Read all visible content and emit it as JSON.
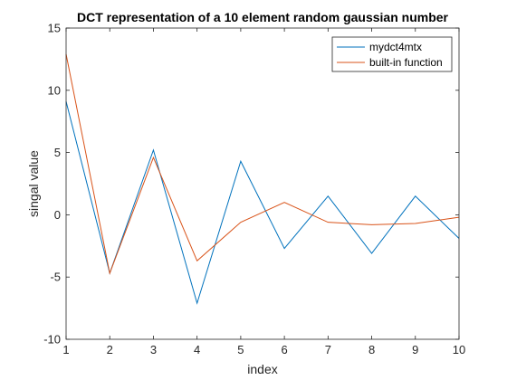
{
  "chart_data": {
    "type": "line",
    "title": "DCT representation of a 10 element random gaussian number",
    "xlabel": "index",
    "ylabel": "singal value",
    "xlim": [
      1,
      10
    ],
    "ylim": [
      -10,
      15
    ],
    "xticks": [
      1,
      2,
      3,
      4,
      5,
      6,
      7,
      8,
      9,
      10
    ],
    "yticks": [
      -10,
      -5,
      0,
      5,
      10,
      15
    ],
    "grid": false,
    "legend_position": "top-right",
    "x": [
      1,
      2,
      3,
      4,
      5,
      6,
      7,
      8,
      9,
      10
    ],
    "series": [
      {
        "name": "mydct4mtx",
        "color": "#0072BD",
        "values": [
          9.1,
          -4.7,
          5.2,
          -7.1,
          4.3,
          -2.7,
          1.5,
          -3.1,
          1.5,
          -1.9
        ]
      },
      {
        "name": "built-in function",
        "color": "#D95319",
        "values": [
          12.9,
          -4.7,
          4.6,
          -3.7,
          -0.6,
          1.0,
          -0.6,
          -0.8,
          -0.7,
          -0.2
        ]
      }
    ]
  }
}
